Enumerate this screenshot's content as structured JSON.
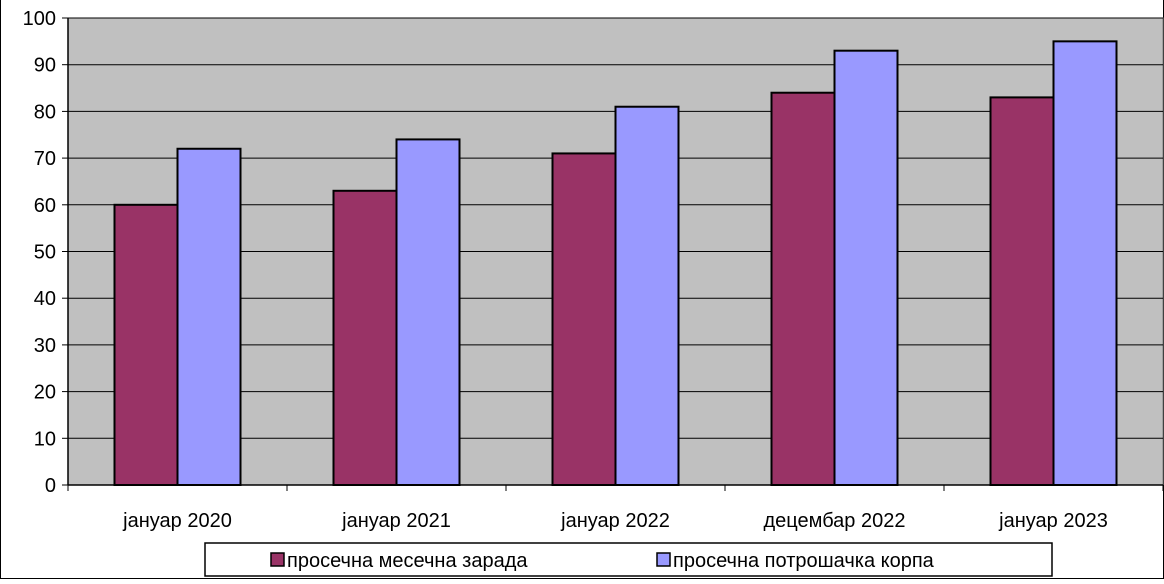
{
  "chart_data": {
    "type": "bar",
    "title": "",
    "xlabel": "",
    "ylabel": "",
    "ylim": [
      0,
      100
    ],
    "yticks": [
      0,
      10,
      20,
      30,
      40,
      50,
      60,
      70,
      80,
      90,
      100
    ],
    "grid": true,
    "legend_position": "bottom",
    "plot_background": "#c0c0c0",
    "categories": [
      "јануар 2020",
      "јануар 2021",
      "јануар 2022",
      "децембар 2022",
      "јануар 2023"
    ],
    "series": [
      {
        "name": "просечна месечна зарада",
        "color": "#993366",
        "values": [
          60,
          63,
          71,
          84,
          83
        ]
      },
      {
        "name": "просечна потрошачка корпа",
        "color": "#9999ff",
        "values": [
          72,
          74,
          81,
          93,
          95
        ]
      }
    ]
  }
}
